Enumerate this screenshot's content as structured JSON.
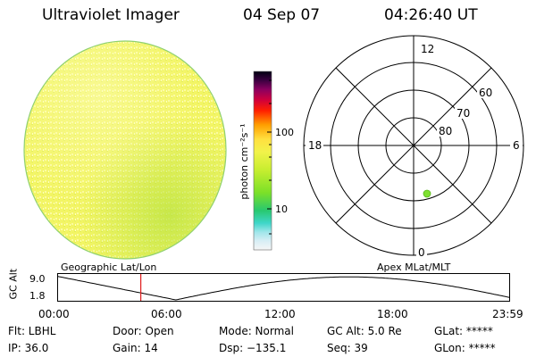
{
  "header": {
    "title": "Ultraviolet Imager",
    "date": "04 Sep 07",
    "time": "04:26:40 UT"
  },
  "colorbar": {
    "label": "photon cm⁻²s⁻¹",
    "ticks": [
      "100",
      "10"
    ]
  },
  "polar": {
    "mlt_labels": {
      "top": "12",
      "left": "18",
      "right": "6",
      "bottom": "0"
    },
    "lat_labels": [
      "60",
      "70",
      "80"
    ]
  },
  "timeline": {
    "axis_label": "GC Alt",
    "y_top": "9.0",
    "y_bottom": "1.8",
    "left_label": "Geographic Lat/Lon",
    "right_label": "Apex MLat/MLT",
    "times": [
      "00:00",
      "06:00",
      "12:00",
      "18:00",
      "23:59"
    ],
    "current_time_hours": 4.44
  },
  "info": {
    "row1": [
      "Flt: LBHL",
      "Door: Open",
      "Mode: Normal",
      "GC Alt: 5.0 Re",
      "GLat: *****"
    ],
    "row2": [
      "IP: 36.0",
      "Gain: 14",
      "Dsp: −135.1",
      "Seq: 39",
      "GLon: *****"
    ]
  }
}
